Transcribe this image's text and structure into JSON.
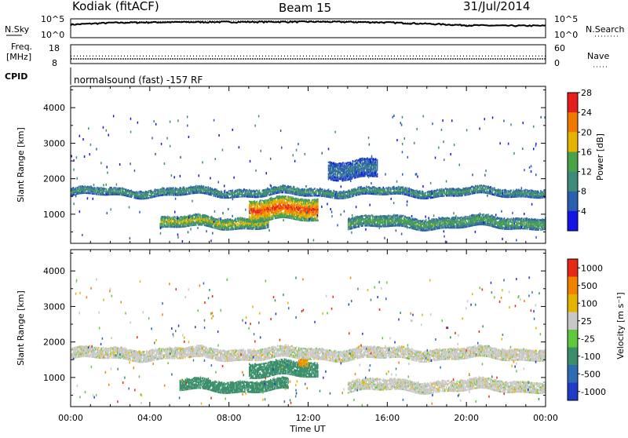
{
  "header": {
    "station": "Kodiak (fitACF)",
    "beam": "Beam 15",
    "date": "31/Jul/2014"
  },
  "strips": {
    "nsky_label": "N.Sky",
    "nsearch_label": "N.Search",
    "counts_ticks": [
      "10^5",
      "10^0"
    ],
    "freq_label_1": "Freq.",
    "freq_label_2": "[MHz]",
    "freq_ticks": [
      "18",
      "8"
    ],
    "nave_label": "Nave",
    "nave_ticks": [
      "60",
      "0"
    ],
    "cpid_label": "CPID",
    "cpid_text": "normalsound (fast) -157 RF"
  },
  "panels": {
    "ylabel": "Slant Range [km]",
    "xlabel": "Time UT",
    "xticks": [
      "00:00",
      "04:00",
      "08:00",
      "12:00",
      "16:00",
      "20:00",
      "00:00"
    ],
    "yticks": [
      "1000",
      "2000",
      "3000",
      "4000"
    ]
  },
  "colorbars": {
    "power": {
      "label": "Power [dB]",
      "ticks": [
        "4",
        "8",
        "12",
        "16",
        "20",
        "24",
        "28"
      ],
      "colors": [
        "#1414e6",
        "#2a5fb0",
        "#3f8a7a",
        "#4aa24a",
        "#e6b400",
        "#f07a00",
        "#e61e1e"
      ]
    },
    "velocity": {
      "label": "Velocity [m s⁻¹]",
      "ticks": [
        "1000",
        "500",
        "100",
        "25",
        "-25",
        "-100",
        "-500",
        "-1000"
      ],
      "colors": [
        "#1e3cc8",
        "#2f6bb4",
        "#3a8f6a",
        "#5fc83c",
        "#c8c8c8",
        "#e6b400",
        "#f08200",
        "#e62814"
      ]
    }
  },
  "chart_data": [
    {
      "type": "line",
      "title": "",
      "xlabel": "",
      "ylabel": "N.Sky",
      "x_range_hours": [
        0,
        24
      ],
      "y_scale": "log",
      "ylim": [
        1,
        100000
      ],
      "series": [
        {
          "name": "N.Sky",
          "x": [
            0,
            2,
            4,
            6,
            8,
            10,
            12,
            14,
            16,
            18,
            20,
            22,
            24
          ],
          "y": [
            3000,
            9000,
            12000,
            14000,
            15000,
            16000,
            17000,
            15000,
            11000,
            5000,
            2000,
            1500,
            1500
          ]
        },
        {
          "name": "N.Search",
          "x": [
            0,
            2,
            4,
            6,
            8,
            10,
            12,
            14,
            16,
            18,
            20,
            22,
            24
          ],
          "y": [
            4000,
            12000,
            20000,
            25000,
            30000,
            32000,
            33000,
            28000,
            15000,
            6000,
            2500,
            1800,
            1800
          ]
        }
      ]
    },
    {
      "type": "line",
      "title": "",
      "xlabel": "",
      "ylabel": "Freq. [MHz]",
      "x_range_hours": [
        0,
        24
      ],
      "ylim": [
        8,
        18
      ],
      "series": [
        {
          "name": "Freq.",
          "x": [
            0,
            24
          ],
          "y": [
            10.5,
            10.5
          ]
        },
        {
          "name": "Nave",
          "x": [
            0,
            24
          ],
          "y": [
            12,
            12
          ]
        }
      ]
    },
    {
      "type": "heatmap",
      "title": "",
      "xlabel": "",
      "ylabel": "Slant Range [km]",
      "x_range_hours": [
        0,
        24
      ],
      "ylim": [
        180,
        4600
      ],
      "z_label": "Power [dB]",
      "z_range": [
        0,
        30
      ],
      "echo_bands": [
        {
          "t": [
            0,
            24
          ],
          "range_km": [
            1500,
            1700
          ],
          "power_db": 12
        },
        {
          "t": [
            4.5,
            10
          ],
          "range_km": [
            600,
            900
          ],
          "power_db": 18
        },
        {
          "t": [
            9,
            12.5
          ],
          "range_km": [
            800,
            1400
          ],
          "power_db": 26
        },
        {
          "t": [
            14,
            24
          ],
          "range_km": [
            600,
            900
          ],
          "power_db": 14
        },
        {
          "t": [
            13,
            15.5
          ],
          "range_km": [
            2000,
            2500
          ],
          "power_db": 8
        }
      ]
    },
    {
      "type": "heatmap",
      "title": "",
      "xlabel": "Time UT",
      "ylabel": "Slant Range [km]",
      "x_range_hours": [
        0,
        24
      ],
      "ylim": [
        180,
        4600
      ],
      "z_label": "Velocity [m s⁻¹]",
      "echo_bands": [
        {
          "t": [
            0,
            24
          ],
          "range_km": [
            1500,
            1800
          ],
          "velocity_ms": 0
        },
        {
          "t": [
            5.5,
            11
          ],
          "range_km": [
            600,
            900
          ],
          "velocity_ms": 150
        },
        {
          "t": [
            9,
            12.5
          ],
          "range_km": [
            1000,
            1400
          ],
          "velocity_ms": 200
        },
        {
          "t": [
            11.5,
            12
          ],
          "range_km": [
            1300,
            1500
          ],
          "velocity_ms": -100
        },
        {
          "t": [
            14,
            24
          ],
          "range_km": [
            600,
            900
          ],
          "velocity_ms": 0
        }
      ]
    }
  ]
}
